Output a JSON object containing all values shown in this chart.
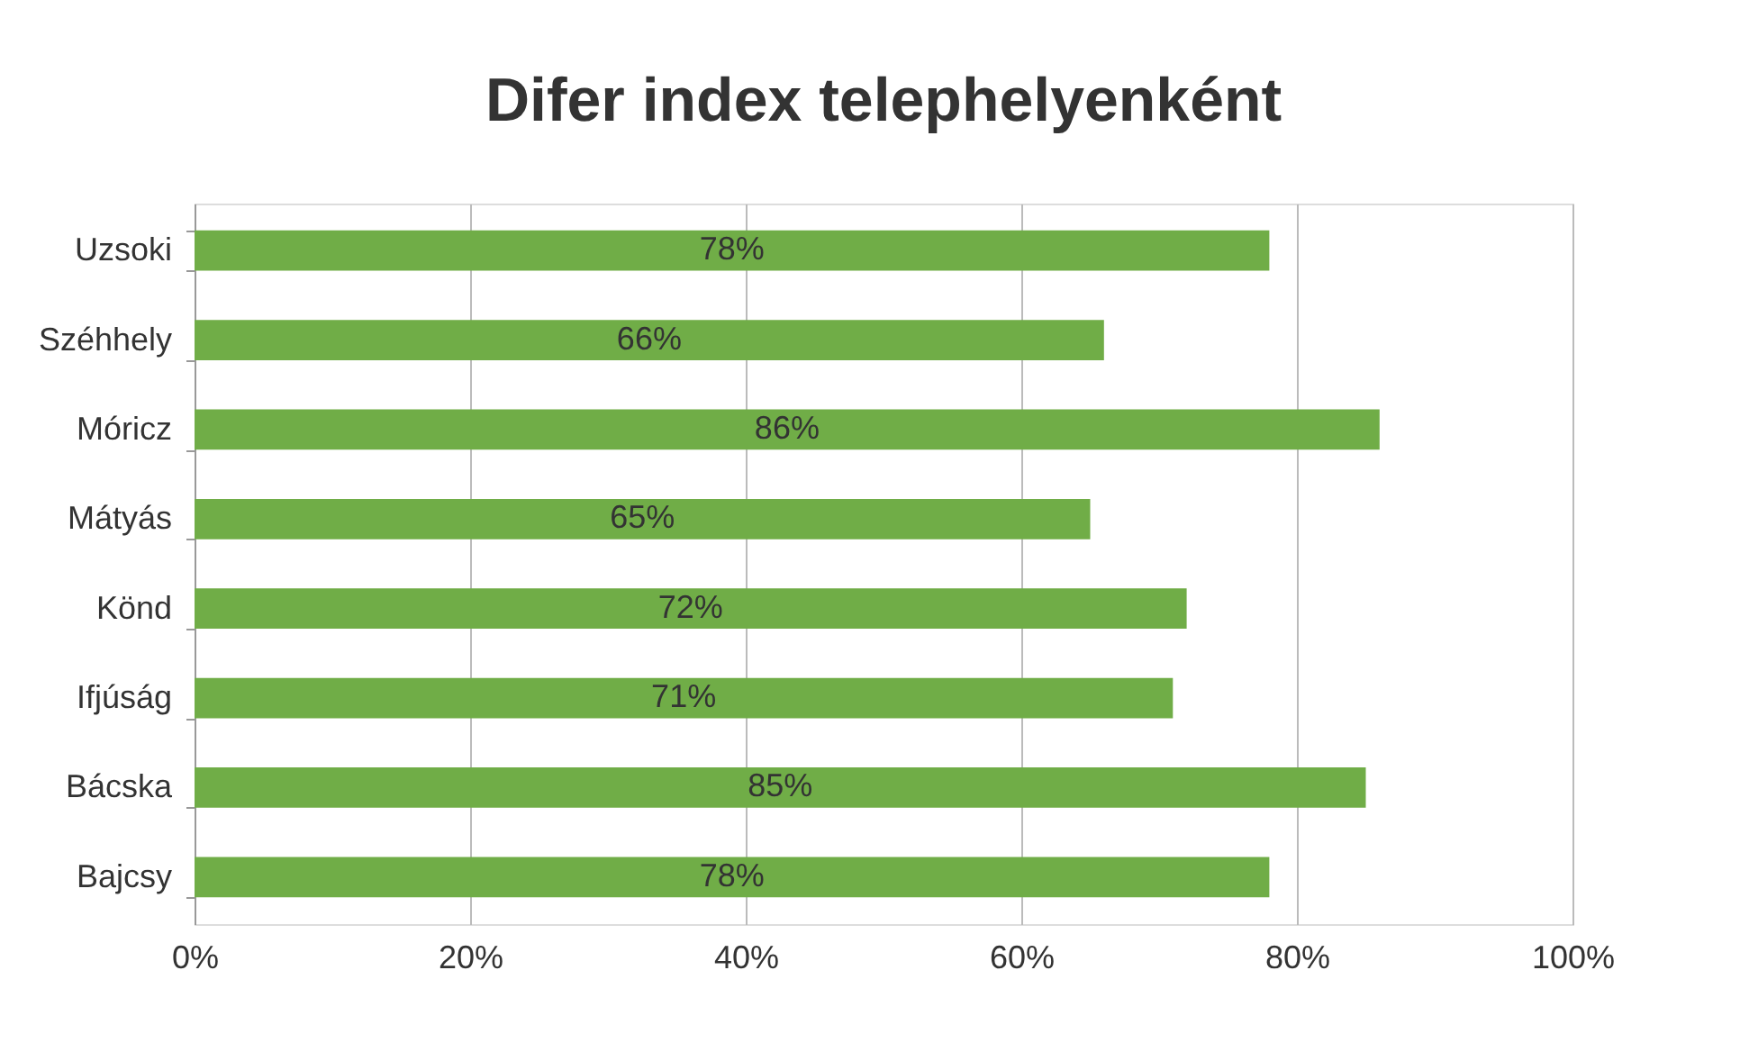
{
  "chart_data": {
    "type": "bar",
    "orientation": "horizontal",
    "title": "Difer index telephelyenként",
    "categories": [
      "Uzsoki",
      "Széhhely",
      "Móricz",
      "Mátyás",
      "Könd",
      "Ifjúság",
      "Bácska",
      "Bajcsy"
    ],
    "values": [
      78,
      66,
      86,
      65,
      72,
      71,
      85,
      78
    ],
    "value_labels": [
      "78%",
      "66%",
      "86%",
      "65%",
      "72%",
      "71%",
      "85%",
      "78%"
    ],
    "color": "#70ad47",
    "xlim": [
      0,
      100
    ],
    "xticks": [
      {
        "value": 0,
        "label": "0%"
      },
      {
        "value": 20,
        "label": "20%"
      },
      {
        "value": 40,
        "label": "40%"
      },
      {
        "value": 60,
        "label": "60%"
      },
      {
        "value": 80,
        "label": "80%"
      },
      {
        "value": 100,
        "label": "100%"
      }
    ],
    "grid": "x"
  }
}
